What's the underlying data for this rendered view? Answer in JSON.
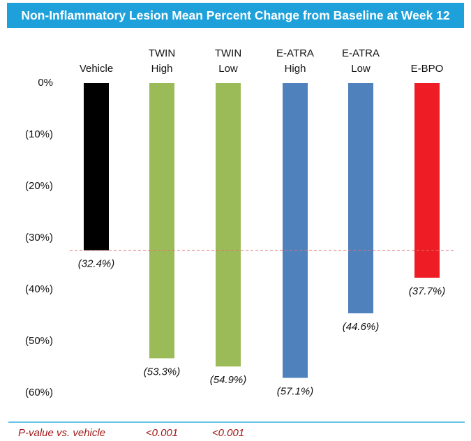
{
  "chart_data": {
    "type": "bar",
    "title": "Non-Inflammatory Lesion Mean Percent Change from Baseline at Week 12",
    "categories": [
      "Vehicle",
      "TWIN High",
      "TWIN Low",
      "E-ATRA High",
      "E-ATRA Low",
      "E-BPO"
    ],
    "values": [
      -32.4,
      -53.3,
      -54.9,
      -57.1,
      -44.6,
      -37.7
    ],
    "value_labels": [
      "(32.4%)",
      "(53.3%)",
      "(54.9%)",
      "(57.1%)",
      "(44.6%)",
      "(37.7%)"
    ],
    "colors": [
      "#000000",
      "#9bbb59",
      "#9bbb59",
      "#4f81bd",
      "#4f81bd",
      "#ee1c25"
    ],
    "ylim": [
      -60,
      0
    ],
    "yticks": [
      {
        "value": 0,
        "label": "0%"
      },
      {
        "value": -10,
        "label": "(10%)"
      },
      {
        "value": -20,
        "label": "(20%)"
      },
      {
        "value": -30,
        "label": "(30%)"
      },
      {
        "value": -40,
        "label": "(40%)"
      },
      {
        "value": -50,
        "label": "(50%)"
      },
      {
        "value": -60,
        "label": "(60%)"
      }
    ],
    "p_value_label": "P-value vs. vehicle",
    "p_values": [
      null,
      "<0.001",
      "<0.001",
      null,
      null,
      null
    ]
  }
}
